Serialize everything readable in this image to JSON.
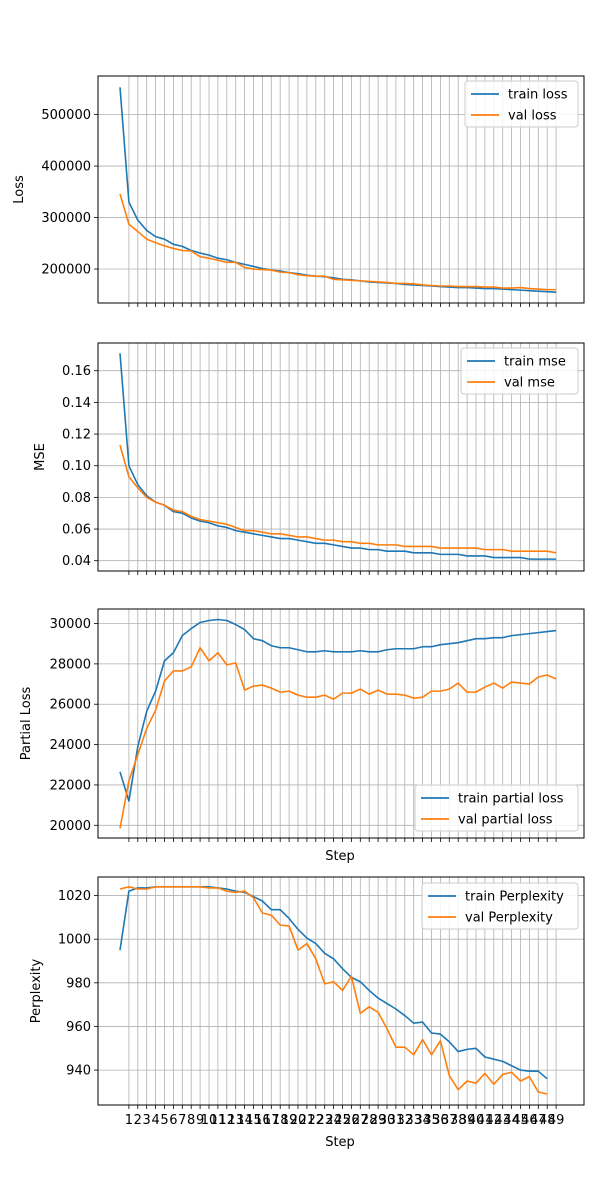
{
  "colors": {
    "train": "#1f77b4",
    "val": "#ff7f0e",
    "grid": "#b0b0b0"
  },
  "chart_data": [
    {
      "type": "line",
      "ylabel": "Loss",
      "xlabel": "",
      "ylim": [
        134000,
        575000
      ],
      "yticks": [
        200000,
        300000,
        400000,
        500000
      ],
      "ytick_labels": [
        "200000",
        "300000",
        "400000",
        "500000"
      ],
      "legend": "top-right",
      "grid": true,
      "series": [
        {
          "name": "train loss",
          "color_key": "train",
          "values": [
            553000,
            330000,
            295000,
            275000,
            263000,
            258000,
            248000,
            244000,
            236000,
            231000,
            227000,
            221000,
            218000,
            213000,
            209000,
            205000,
            201000,
            198000,
            196000,
            193000,
            191000,
            188000,
            186000,
            185000,
            183000,
            180000,
            179000,
            177000,
            175000,
            174000,
            173000,
            172000,
            170000,
            169000,
            168000,
            167000,
            166000,
            165000,
            164000,
            164000,
            163000,
            162000,
            162000,
            161000,
            160000,
            159000,
            158000,
            157000,
            156000,
            155000
          ]
        },
        {
          "name": "val loss",
          "color_key": "val",
          "values": [
            346000,
            287000,
            273000,
            258000,
            251000,
            245000,
            240000,
            236000,
            235000,
            224000,
            221000,
            217000,
            213000,
            213000,
            203000,
            200000,
            199000,
            198000,
            194000,
            193000,
            189000,
            187000,
            186000,
            186000,
            180000,
            179000,
            178000,
            177000,
            176000,
            175000,
            174000,
            172000,
            172000,
            171000,
            169000,
            168000,
            167000,
            167000,
            166000,
            166000,
            166000,
            165000,
            165000,
            163000,
            163000,
            164000,
            162000,
            161000,
            160000,
            160000
          ]
        }
      ]
    },
    {
      "type": "line",
      "ylabel": "MSE",
      "xlabel": "",
      "ylim": [
        0.0335,
        0.1775
      ],
      "yticks": [
        0.04,
        0.06,
        0.08,
        0.1,
        0.12,
        0.14,
        0.16
      ],
      "ytick_labels": [
        "0.04",
        "0.06",
        "0.08",
        "0.10",
        "0.12",
        "0.14",
        "0.16"
      ],
      "legend": "top-right",
      "grid": true,
      "series": [
        {
          "name": "train mse",
          "color_key": "train",
          "values": [
            0.171,
            0.1,
            0.088,
            0.081,
            0.077,
            0.075,
            0.071,
            0.07,
            0.067,
            0.065,
            0.064,
            0.062,
            0.061,
            0.059,
            0.058,
            0.057,
            0.056,
            0.055,
            0.054,
            0.054,
            0.053,
            0.052,
            0.051,
            0.051,
            0.05,
            0.049,
            0.048,
            0.048,
            0.047,
            0.047,
            0.046,
            0.046,
            0.046,
            0.045,
            0.045,
            0.045,
            0.044,
            0.044,
            0.044,
            0.043,
            0.043,
            0.043,
            0.042,
            0.042,
            0.042,
            0.042,
            0.041,
            0.041,
            0.041,
            0.041
          ]
        },
        {
          "name": "val mse",
          "color_key": "val",
          "values": [
            0.113,
            0.093,
            0.086,
            0.08,
            0.077,
            0.075,
            0.072,
            0.071,
            0.068,
            0.066,
            0.065,
            0.064,
            0.063,
            0.061,
            0.059,
            0.059,
            0.058,
            0.057,
            0.057,
            0.056,
            0.055,
            0.055,
            0.054,
            0.053,
            0.053,
            0.052,
            0.052,
            0.051,
            0.051,
            0.05,
            0.05,
            0.05,
            0.049,
            0.049,
            0.049,
            0.049,
            0.048,
            0.048,
            0.048,
            0.048,
            0.048,
            0.047,
            0.047,
            0.047,
            0.046,
            0.046,
            0.046,
            0.046,
            0.046,
            0.045
          ]
        }
      ]
    },
    {
      "type": "line",
      "ylabel": "Partial Loss",
      "xlabel": "Step",
      "ylim": [
        19370,
        30720
      ],
      "yticks": [
        20000,
        22000,
        24000,
        26000,
        28000,
        30000
      ],
      "ytick_labels": [
        "20000",
        "22000",
        "24000",
        "26000",
        "28000",
        "30000"
      ],
      "legend": "bottom-right",
      "grid": true,
      "series": [
        {
          "name": "train partial loss",
          "color_key": "train",
          "values": [
            22650,
            21200,
            23900,
            25650,
            26650,
            28150,
            28550,
            29400,
            29750,
            30050,
            30150,
            30200,
            30150,
            29950,
            29700,
            29250,
            29150,
            28900,
            28800,
            28800,
            28700,
            28600,
            28600,
            28650,
            28600,
            28600,
            28600,
            28650,
            28600,
            28600,
            28700,
            28750,
            28750,
            28750,
            28850,
            28850,
            28950,
            29000,
            29050,
            29150,
            29250,
            29250,
            29300,
            29300,
            29400,
            29450,
            29500,
            29550,
            29600,
            29650
          ]
        },
        {
          "name": "val partial loss",
          "color_key": "val",
          "values": [
            19850,
            22200,
            23500,
            24800,
            25700,
            27150,
            27650,
            27650,
            27850,
            28800,
            28150,
            28550,
            27950,
            28050,
            26700,
            26900,
            26950,
            26800,
            26600,
            26650,
            26450,
            26350,
            26350,
            26450,
            26250,
            26550,
            26550,
            26750,
            26500,
            26700,
            26500,
            26500,
            26450,
            26300,
            26350,
            26650,
            26650,
            26750,
            27050,
            26600,
            26600,
            26850,
            27050,
            26800,
            27100,
            27050,
            27000,
            27350,
            27450,
            27250
          ]
        }
      ]
    },
    {
      "type": "line",
      "ylabel": "Perplexity",
      "xlabel": "Step",
      "ylim": [
        924,
        1028.5
      ],
      "yticks": [
        940,
        960,
        980,
        1000,
        1020
      ],
      "ytick_labels": [
        "940",
        "960",
        "980",
        "1000",
        "1020"
      ],
      "xticks": [
        1,
        2,
        3,
        4,
        5,
        6,
        7,
        8,
        9,
        10,
        11,
        12,
        13,
        14,
        15,
        16,
        17,
        18,
        19,
        20,
        21,
        22,
        23,
        24,
        25,
        26,
        27,
        28,
        29,
        30,
        31,
        32,
        33,
        34,
        35,
        36,
        37,
        38,
        39,
        40,
        41,
        42,
        43,
        44,
        45,
        46,
        47,
        48,
        49
      ],
      "xtick_labels": [
        "1",
        "2",
        "3",
        "4",
        "5",
        "6",
        "7",
        "8",
        "9",
        "10",
        "11",
        "12",
        "13",
        "14",
        "15",
        "16",
        "17",
        "18",
        "19",
        "20",
        "21",
        "22",
        "23",
        "24",
        "25",
        "26",
        "27",
        "28",
        "29",
        "30",
        "31",
        "32",
        "33",
        "34",
        "35",
        "36",
        "37",
        "38",
        "39",
        "40",
        "41",
        "42",
        "43",
        "44",
        "45",
        "46",
        "47",
        "48",
        "49"
      ],
      "legend": "top-right",
      "grid": true,
      "series": [
        {
          "name": "train Perplexity",
          "color_key": "train",
          "values": [
            995,
            1022,
            1023.5,
            1023.5,
            1024,
            1024,
            1024,
            1024,
            1024,
            1024,
            1024,
            1023.5,
            1023,
            1022,
            1021.5,
            1019.5,
            1017.5,
            1013.5,
            1013.5,
            1009.5,
            1004.5,
            1000.5,
            998,
            993.5,
            991,
            986.5,
            982.5,
            980.5,
            976.5,
            973,
            970.5,
            968,
            965,
            961.5,
            962,
            957,
            956.5,
            953,
            948.5,
            949.5,
            950,
            946,
            945,
            944,
            942,
            940,
            939.5,
            939.5,
            936
          ]
        },
        {
          "name": "val Perplexity",
          "color_key": "val",
          "values": [
            1023,
            1024,
            1023,
            1023,
            1024,
            1024,
            1024,
            1024,
            1024,
            1024,
            1023.5,
            1023.5,
            1022,
            1021.5,
            1022,
            1019,
            1012,
            1011,
            1006.5,
            1006,
            995,
            998,
            991,
            979.5,
            980.5,
            976.5,
            983,
            966,
            969,
            966.5,
            959,
            950.5,
            950.5,
            947,
            954,
            947,
            953.5,
            937.5,
            931,
            935,
            934,
            938.5,
            933.5,
            938,
            939,
            935,
            937,
            930,
            929
          ]
        }
      ]
    }
  ]
}
